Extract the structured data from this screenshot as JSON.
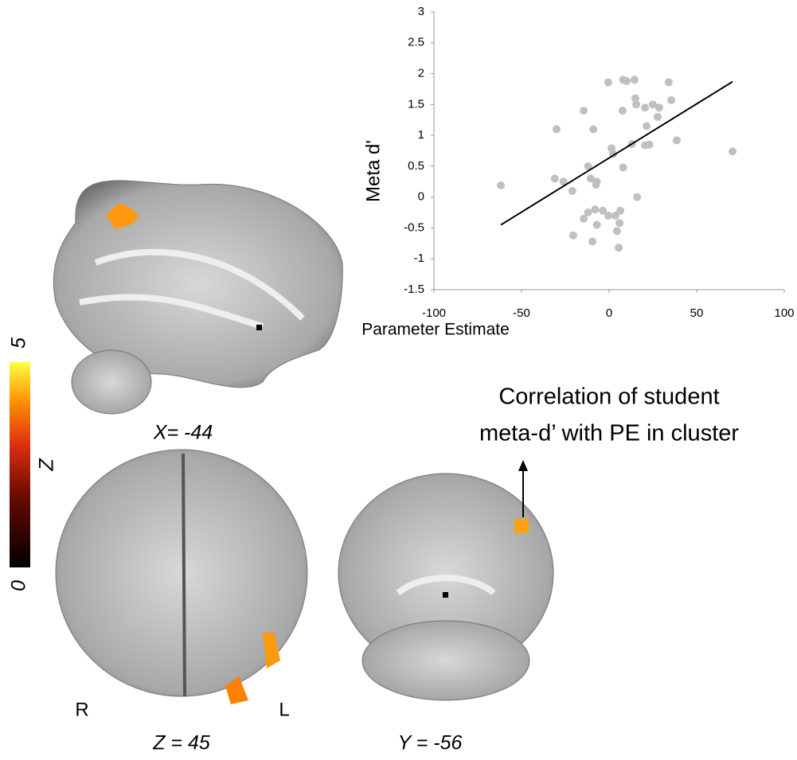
{
  "chart_data": {
    "type": "scatter",
    "ylabel": "Meta d'",
    "xlabel": "Parameter Estimate",
    "color": "#c0c0c0",
    "x": [
      -61.8,
      -30,
      -31,
      -26,
      -21,
      -14.5,
      -9,
      -12,
      -10.5,
      -7,
      -7.5,
      -12,
      -8,
      -3.6,
      -7,
      -14.5,
      -20.5,
      -9.5,
      -0.5,
      3.6,
      6.4,
      6,
      4.5,
      5.5,
      -0.5,
      8,
      10,
      14.5,
      7.7,
      15,
      15.5,
      20.5,
      25,
      28.6,
      27.7,
      34,
      35.5,
      21.4,
      20.5,
      23,
      13,
      1.4,
      2.3,
      8,
      16,
      38.6,
      70.5
    ],
    "y": [
      0.19,
      1.1,
      0.3,
      0.25,
      0.1,
      1.4,
      1.1,
      0.5,
      0.3,
      0.25,
      0.2,
      -0.25,
      -0.2,
      -0.22,
      -0.45,
      -0.35,
      -0.62,
      -0.72,
      -0.3,
      -0.3,
      -0.22,
      -0.42,
      -0.55,
      -0.82,
      1.86,
      1.9,
      1.88,
      1.9,
      1.4,
      1.6,
      1.5,
      1.45,
      1.5,
      1.45,
      1.3,
      1.86,
      1.57,
      1.15,
      0.84,
      0.85,
      0.86,
      0.79,
      0.7,
      0.48,
      0,
      0.92,
      0.74
    ],
    "trendline": {
      "x": [
        -61.8,
        70.5
      ],
      "y": [
        -0.45,
        1.87
      ],
      "color": "#000000"
    },
    "xlim": [
      -100,
      100
    ],
    "xticks": [
      -100,
      -50,
      0,
      50,
      100
    ],
    "ylim": [
      -1.5,
      3
    ],
    "yticks": [
      -1.5,
      -1,
      -0.5,
      0,
      0.5,
      1,
      1.5,
      2,
      2.5,
      3
    ]
  },
  "figure": {
    "slice_labels": [
      "X= -44",
      "Z = 45",
      "Y = -56"
    ],
    "side_labels": [
      "R",
      "L"
    ],
    "annotation": [
      "Correlation of student",
      "meta-d’ with PE in cluster"
    ],
    "colorbar": {
      "label": "Z",
      "ticks": [
        0,
        5
      ]
    }
  }
}
